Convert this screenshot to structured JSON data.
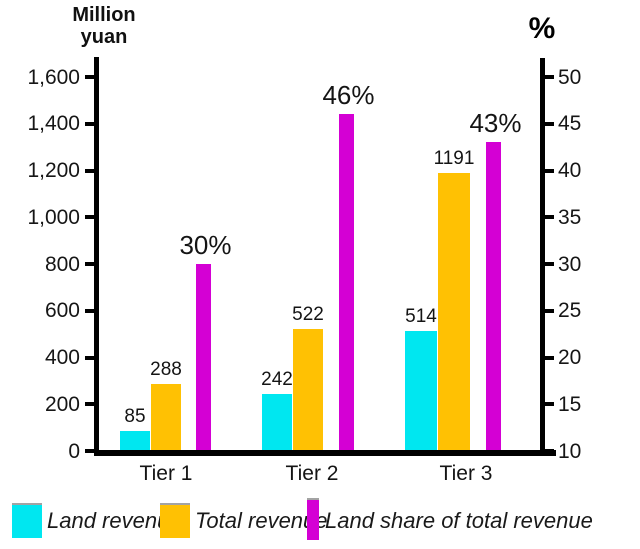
{
  "chart_data": {
    "type": "bar",
    "categories": [
      "Tier 1",
      "Tier 2",
      "Tier 3"
    ],
    "series": [
      {
        "name": "Land revenue",
        "axis": "left",
        "color": "#00E7F0",
        "values": [
          85,
          242,
          514
        ],
        "labels": [
          "85",
          "242",
          "514"
        ]
      },
      {
        "name": "Total revenue",
        "axis": "left",
        "color": "#FFC103",
        "values": [
          288,
          522,
          1191
        ],
        "labels": [
          "288",
          "522",
          "1191"
        ]
      },
      {
        "name": "Land share of total revenue",
        "axis": "right",
        "color": "#D400D4",
        "values": [
          30,
          46,
          43
        ],
        "labels": [
          "30%",
          "46%",
          "43%"
        ]
      }
    ],
    "left_axis": {
      "label": "Million\nyuan",
      "min": 0,
      "max": 1600,
      "step": 200,
      "tick_labels": [
        "0",
        "200",
        "400",
        "600",
        "800",
        "1,000",
        "1,200",
        "1,400",
        "1,600"
      ]
    },
    "right_axis": {
      "label": "%",
      "min": 10,
      "max": 50,
      "step": 5,
      "tick_labels": [
        "10",
        "15",
        "20",
        "25",
        "30",
        "35",
        "40",
        "45",
        "50"
      ]
    },
    "legend": [
      {
        "label": "Land revenue",
        "color": "#00E7F0",
        "swatch": "square"
      },
      {
        "label": "Total revenue",
        "color": "#FFC103",
        "swatch": "square"
      },
      {
        "label": "Land share of total revenue",
        "color": "#D400D4",
        "swatch": "bar"
      }
    ],
    "grid": false,
    "legend_position": "bottom",
    "colors": {
      "axis": "#000000",
      "text": "#141414"
    }
  }
}
